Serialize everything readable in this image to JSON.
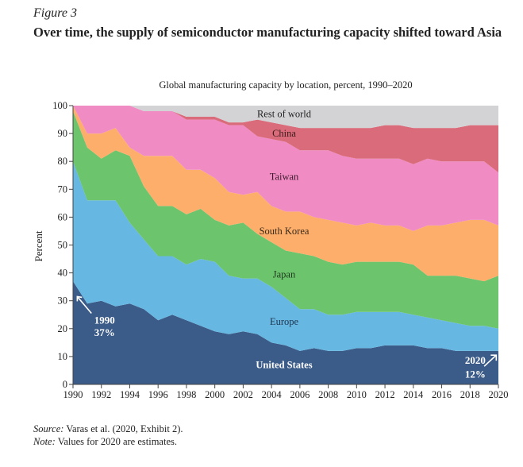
{
  "figure_label": "Figure 3",
  "figure_title": "Over time, the supply of semiconductor manufacturing capacity shifted toward Asia",
  "source_label": "Source:",
  "source_text": "Varas et al. (2020, Exhibit 2).",
  "note_label": "Note:",
  "note_text": "Values for 2020 are estimates.",
  "chart_data": {
    "type": "area",
    "stacked": true,
    "title": "Global manufacturing capacity by location, percent, 1990–2020",
    "xlabel": "",
    "ylabel": "Percent",
    "xlim": [
      1990,
      2020
    ],
    "ylim": [
      0,
      100
    ],
    "x_ticks": [
      "1990",
      "1992",
      "1994",
      "1996",
      "1998",
      "2000",
      "2002",
      "2004",
      "2006",
      "2008",
      "2010",
      "2012",
      "2014",
      "2016",
      "2018",
      "2020"
    ],
    "y_ticks": [
      "0",
      "10",
      "20",
      "30",
      "40",
      "50",
      "60",
      "70",
      "80",
      "90",
      "100"
    ],
    "x": [
      1990,
      1991,
      1992,
      1993,
      1994,
      1995,
      1996,
      1997,
      1998,
      1999,
      2000,
      2001,
      2002,
      2003,
      2004,
      2005,
      2006,
      2007,
      2008,
      2009,
      2010,
      2011,
      2012,
      2013,
      2014,
      2015,
      2016,
      2017,
      2018,
      2019,
      2020
    ],
    "series": [
      {
        "name": "United States",
        "color": "#3b5b88",
        "label_color": "#ffffff",
        "values": [
          37,
          29,
          30,
          28,
          29,
          27,
          23,
          25,
          23,
          21,
          19,
          18,
          19,
          18,
          15,
          14,
          12,
          13,
          12,
          12,
          13,
          13,
          14,
          14,
          14,
          13,
          13,
          12,
          12,
          12,
          12
        ]
      },
      {
        "name": "Europe",
        "color": "#66b8e2",
        "label_color": "#1f3550",
        "values": [
          43,
          37,
          36,
          38,
          29,
          25,
          23,
          21,
          20,
          24,
          25,
          21,
          19,
          20,
          20,
          17,
          15,
          14,
          13,
          13,
          13,
          13,
          12,
          12,
          11,
          11,
          10,
          10,
          9,
          9,
          8
        ]
      },
      {
        "name": "Japan",
        "color": "#6cc46c",
        "label_color": "#1f3a1f",
        "values": [
          18,
          19,
          15,
          18,
          24,
          19,
          18,
          18,
          18,
          18,
          15,
          18,
          20,
          16,
          16,
          17,
          20,
          19,
          19,
          18,
          18,
          18,
          18,
          18,
          18,
          15,
          16,
          17,
          17,
          16,
          19
        ]
      },
      {
        "name": "South Korea",
        "color": "#fdae6b",
        "label_color": "#3a2a1a",
        "values": [
          2,
          5,
          9,
          8,
          3,
          11,
          18,
          18,
          16,
          14,
          15,
          12,
          10,
          15,
          13,
          14,
          15,
          14,
          15,
          15,
          13,
          14,
          13,
          13,
          12,
          18,
          18,
          19,
          21,
          22,
          18
        ]
      },
      {
        "name": "Taiwan",
        "color": "#f08bc3",
        "label_color": "#3a1a2a",
        "values": [
          0,
          10,
          10,
          8,
          15,
          16,
          16,
          16,
          18,
          18,
          21,
          24,
          25,
          20,
          24,
          25,
          22,
          24,
          25,
          24,
          24,
          23,
          24,
          24,
          24,
          24,
          23,
          22,
          21,
          21,
          19
        ]
      },
      {
        "name": "China",
        "color": "#d96b7a",
        "label_color": "#3a1a1a",
        "values": [
          0,
          0,
          0,
          0,
          0,
          0,
          0,
          0,
          1,
          1,
          1,
          1,
          1,
          6,
          6,
          6,
          8,
          8,
          8,
          10,
          11,
          11,
          12,
          12,
          13,
          11,
          12,
          12,
          13,
          13,
          17
        ]
      },
      {
        "name": "Rest of world",
        "color": "#d3d3d5",
        "label_color": "#222222",
        "values": [
          0,
          0,
          0,
          0,
          0,
          2,
          2,
          2,
          4,
          4,
          4,
          6,
          6,
          5,
          6,
          7,
          8,
          8,
          8,
          8,
          8,
          8,
          7,
          7,
          8,
          8,
          8,
          8,
          7,
          7,
          7
        ]
      }
    ],
    "annotations": [
      {
        "year_label": "1990",
        "value_label": "37%"
      },
      {
        "year_label": "2020",
        "value_label": "12%"
      }
    ],
    "grid": false,
    "legend": "inline labels"
  }
}
